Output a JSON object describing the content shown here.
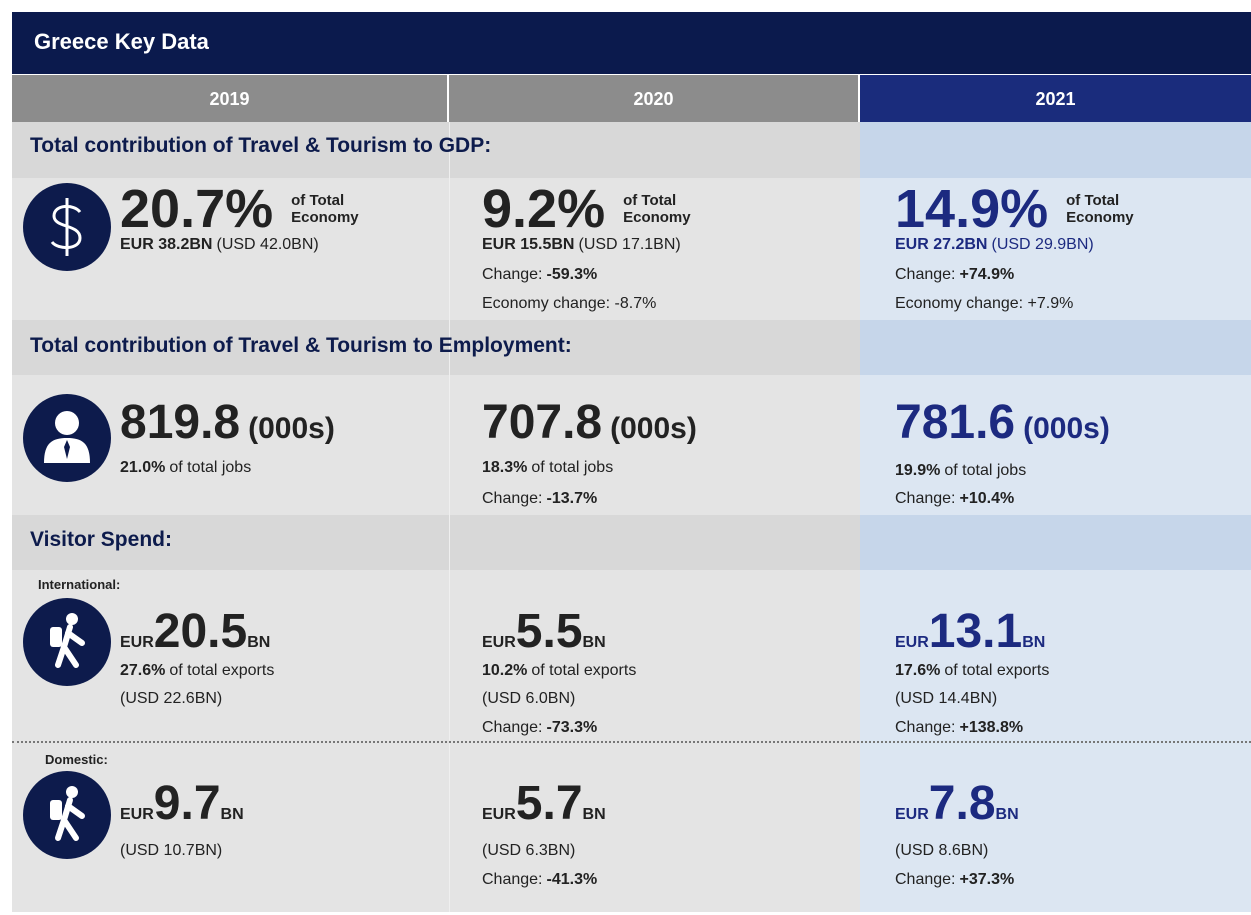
{
  "title": "Greece Key Data",
  "years": [
    "2019",
    "2020",
    "2021"
  ],
  "gdp": {
    "heading": "Total contribution of Travel & Tourism to GDP:",
    "cells": [
      {
        "value": "20.7%",
        "note": "of Total Economy",
        "amount": "EUR 38.2BN",
        "amount_usd": "(USD 42.0BN)"
      },
      {
        "value": "9.2%",
        "note": "of Total Economy",
        "amount": "EUR 15.5BN",
        "amount_usd": "(USD 17.1BN)",
        "change_label": "Change:",
        "change": "-59.3%",
        "economy_change": "Economy change: -8.7%"
      },
      {
        "value": "14.9%",
        "note": "of Total Economy",
        "amount": "EUR 27.2BN",
        "amount_usd": "(USD 29.9BN)",
        "change_label": "Change:",
        "change": "+74.9%",
        "economy_change": "Economy change: +7.9%"
      }
    ]
  },
  "employment": {
    "heading": "Total contribution of Travel & Tourism to Employment:",
    "cells": [
      {
        "value": "819.8",
        "unit": "(000s)",
        "share": "21.0%",
        "share_label": "of total jobs"
      },
      {
        "value": "707.8",
        "unit": "(000s)",
        "share": "18.3%",
        "share_label": "of total jobs",
        "change_label": "Change:",
        "change": "-13.7%"
      },
      {
        "value": "781.6",
        "unit": "(000s)",
        "share": "19.9%",
        "share_label": "of total jobs",
        "change_label": "Change:",
        "change": "+10.4%"
      }
    ]
  },
  "visitor_spend": {
    "heading": "Visitor Spend:",
    "international": {
      "label": "International:",
      "cells": [
        {
          "currency": "EUR",
          "value": "20.5",
          "unit": "BN",
          "share": "27.6%",
          "share_label": "of total exports",
          "usd": "(USD 22.6BN)"
        },
        {
          "currency": "EUR",
          "value": "5.5",
          "unit": "BN",
          "share": "10.2%",
          "share_label": "of total exports",
          "usd": "(USD 6.0BN)",
          "change_label": "Change:",
          "change": "-73.3%"
        },
        {
          "currency": "EUR",
          "value": "13.1",
          "unit": "BN",
          "share": "17.6%",
          "share_label": "of total exports",
          "usd": "(USD 14.4BN)",
          "change_label": "Change:",
          "change": "+138.8%"
        }
      ]
    },
    "domestic": {
      "label": "Domestic:",
      "cells": [
        {
          "currency": "EUR",
          "value": "9.7",
          "unit": "BN",
          "usd": "(USD 10.7BN)"
        },
        {
          "currency": "EUR",
          "value": "5.7",
          "unit": "BN",
          "usd": "(USD 6.3BN)",
          "change_label": "Change:",
          "change": "-41.3%"
        },
        {
          "currency": "EUR",
          "value": "7.8",
          "unit": "BN",
          "usd": "(USD 8.6BN)",
          "change_label": "Change:",
          "change": "+37.3%"
        }
      ]
    }
  }
}
